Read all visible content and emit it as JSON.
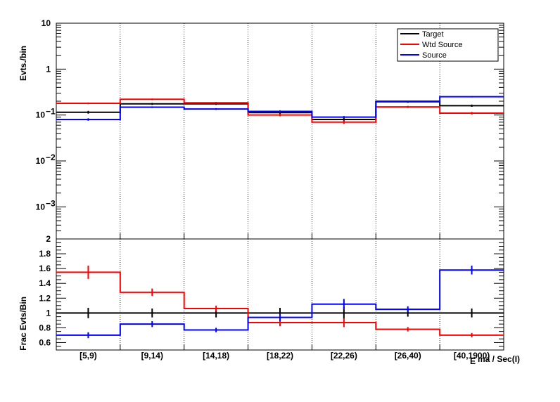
{
  "chart_data": [
    {
      "type": "line",
      "panel": "top",
      "scale": "log",
      "ylabel": "Evts./bin",
      "ylim": [
        0.0002,
        10
      ],
      "yticks": [
        {
          "value": 10,
          "base": "10",
          "exp": ""
        },
        {
          "value": 1,
          "base": "1",
          "exp": ""
        },
        {
          "value": 0.1,
          "base": "10",
          "exp": "−1"
        },
        {
          "value": 0.01,
          "base": "10",
          "exp": "−2"
        },
        {
          "value": 0.001,
          "base": "10",
          "exp": "−3"
        }
      ],
      "categories": [
        "[5,9)",
        "[9,14)",
        "[14,18)",
        "[18,22)",
        "[22,26)",
        "[26,40)",
        "[40,1900)"
      ],
      "grid": "vertical dotted",
      "legend_position": "top-right",
      "series": [
        {
          "name": "Target",
          "color": "#000000",
          "values": [
            0.115,
            0.175,
            0.175,
            0.113,
            0.08,
            0.195,
            0.16
          ],
          "errors": [
            0.008,
            0.009,
            0.009,
            0.007,
            0.007,
            0.01,
            0.009
          ]
        },
        {
          "name": "Wtd Source",
          "color": "#ff0000",
          "values": [
            0.18,
            0.22,
            0.185,
            0.1,
            0.07,
            0.15,
            0.11
          ],
          "errors": [
            0.008,
            0.009,
            0.008,
            0.006,
            0.006,
            0.008,
            0.007
          ]
        },
        {
          "name": "Source",
          "color": "#0000ff",
          "values": [
            0.08,
            0.148,
            0.135,
            0.12,
            0.09,
            0.2,
            0.25
          ],
          "errors": [
            0.005,
            0.006,
            0.006,
            0.006,
            0.005,
            0.007,
            0.008
          ]
        }
      ]
    },
    {
      "type": "line",
      "panel": "bottom",
      "ylabel": "Frac Evts/Bin",
      "xlabel": "E",
      "xlabel_suffix": "ma / Sec(I)",
      "ylim": [
        0.5,
        2.0
      ],
      "yticks": [
        "0.6",
        "0.8",
        "1",
        "1.2",
        "1.4",
        "1.6",
        "1.8",
        "2"
      ],
      "categories": [
        "[5,9)",
        "[9,14)",
        "[14,18)",
        "[18,22)",
        "[22,26)",
        "[26,40)",
        "[40,1900)"
      ],
      "series": [
        {
          "name": "Target",
          "color": "#000000",
          "values": [
            1.0,
            1.0,
            1.0,
            1.0,
            1.0,
            1.0,
            1.0
          ],
          "errors": [
            0.07,
            0.06,
            0.06,
            0.07,
            0.08,
            0.05,
            0.06
          ]
        },
        {
          "name": "Wtd Source",
          "color": "#ff0000",
          "values": [
            1.55,
            1.28,
            1.06,
            0.87,
            0.87,
            0.78,
            0.7
          ],
          "errors": [
            0.09,
            0.05,
            0.04,
            0.05,
            0.06,
            0.03,
            0.03
          ]
        },
        {
          "name": "Source",
          "color": "#0000ff",
          "values": [
            0.7,
            0.85,
            0.77,
            0.94,
            1.12,
            1.05,
            1.58
          ],
          "errors": [
            0.04,
            0.04,
            0.03,
            0.05,
            0.07,
            0.04,
            0.06
          ]
        }
      ]
    }
  ]
}
